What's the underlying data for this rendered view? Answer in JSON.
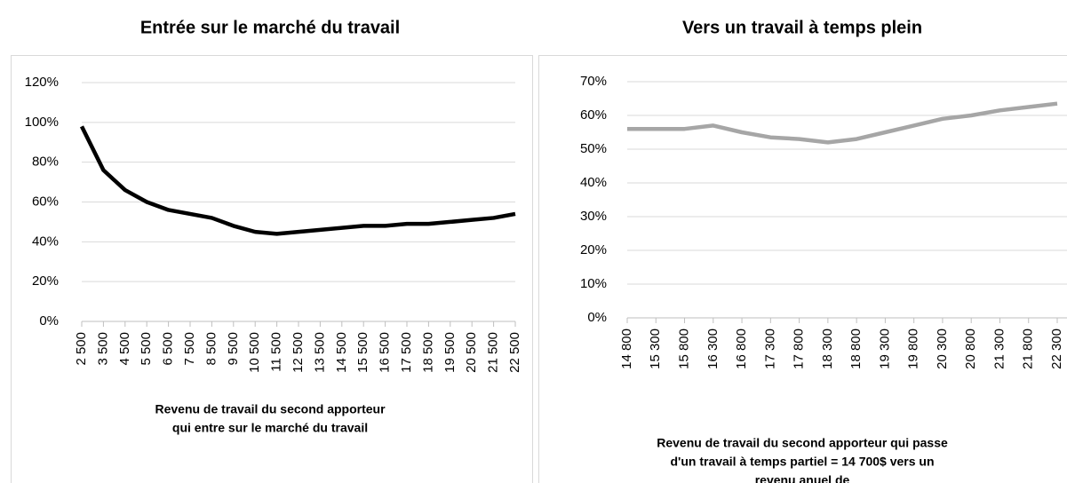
{
  "chart_data": [
    {
      "type": "line",
      "title": "Entrée sur le marché du travail",
      "xlabel": [
        "Revenu de travail du second apporteur",
        "qui entre sur le marché du travail"
      ],
      "categories": [
        "2 500",
        "3 500",
        "4 500",
        "5 500",
        "6 500",
        "7 500",
        "8 500",
        "9 500",
        "10 500",
        "11 500",
        "12 500",
        "13 500",
        "14 500",
        "15 500",
        "16 500",
        "17 500",
        "18 500",
        "19 500",
        "20 500",
        "21 500",
        "22 500"
      ],
      "series": [
        {
          "name": "Entrée sur le marché du travail",
          "color": "#000000",
          "values": [
            98,
            76,
            66,
            60,
            56,
            54,
            52,
            48,
            45,
            44,
            45,
            46,
            47,
            48,
            48,
            49,
            49,
            50,
            51,
            52,
            54
          ]
        }
      ],
      "ylim": [
        0,
        120
      ],
      "yticks": [
        {
          "value": 0,
          "label": "0%"
        },
        {
          "value": 20,
          "label": "20%"
        },
        {
          "value": 40,
          "label": "40%"
        },
        {
          "value": 60,
          "label": "60%"
        },
        {
          "value": 80,
          "label": "80%"
        },
        {
          "value": 100,
          "label": "100%"
        },
        {
          "value": 120,
          "label": "120%"
        }
      ],
      "grid": true
    },
    {
      "type": "line",
      "title": "Vers un travail à temps plein",
      "xlabel": [
        "Revenu de travail du second apporteur qui passe",
        "d'un travail à temps partiel = 14 700$ vers un",
        "revenu anuel de"
      ],
      "categories": [
        "14 800",
        "15 300",
        "15 800",
        "16 300",
        "16 800",
        "17 300",
        "17 800",
        "18 300",
        "18 800",
        "19 300",
        "19 800",
        "20 300",
        "20 800",
        "21 300",
        "21 800",
        "22 300"
      ],
      "series": [
        {
          "name": "Vers un travail à temps plein",
          "color": "#a6a6a6",
          "values": [
            56,
            56,
            56,
            57,
            55,
            53.5,
            53,
            52,
            53,
            55,
            57,
            59,
            60,
            61.5,
            62.5,
            63.5
          ]
        }
      ],
      "ylim": [
        0,
        70
      ],
      "yticks": [
        {
          "value": 0,
          "label": "0%"
        },
        {
          "value": 10,
          "label": "10%"
        },
        {
          "value": 20,
          "label": "20%"
        },
        {
          "value": 30,
          "label": "30%"
        },
        {
          "value": 40,
          "label": "40%"
        },
        {
          "value": 50,
          "label": "50%"
        },
        {
          "value": 60,
          "label": "60%"
        },
        {
          "value": 70,
          "label": "70%"
        }
      ],
      "grid": true
    }
  ]
}
